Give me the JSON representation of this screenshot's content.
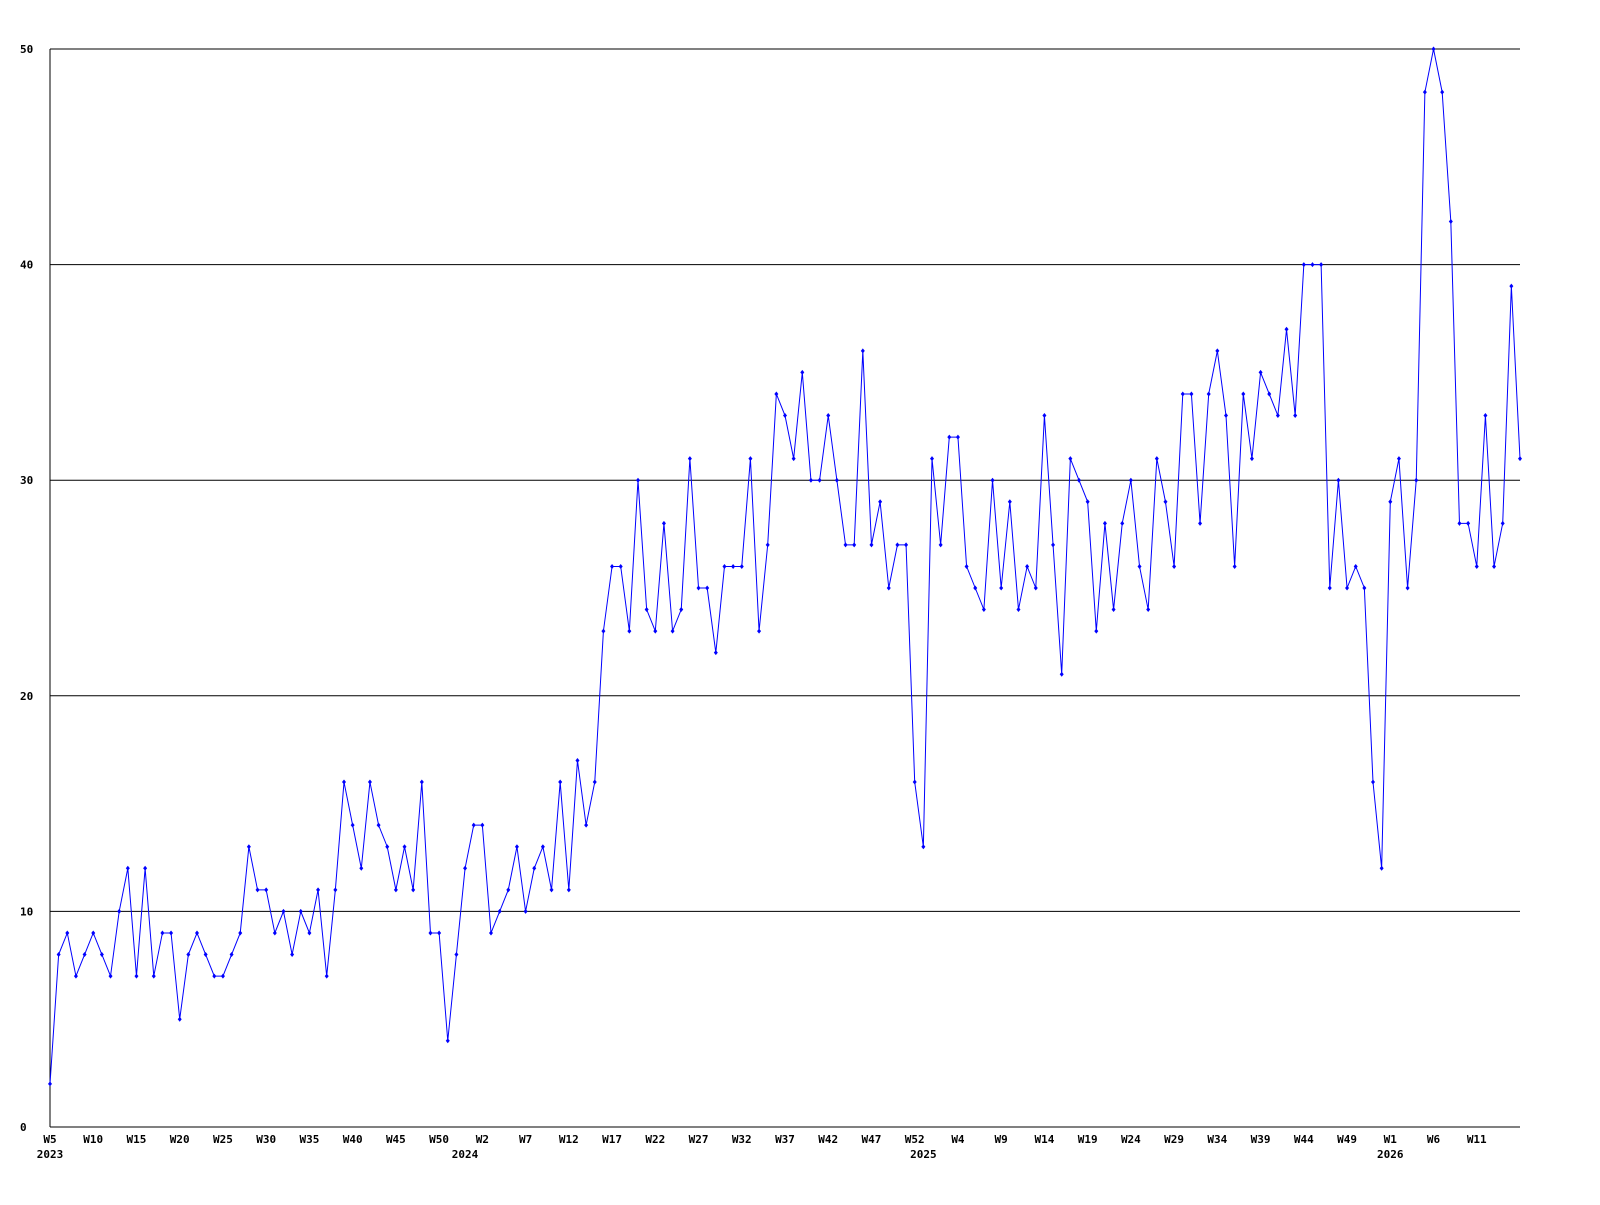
{
  "chart_data": {
    "type": "line",
    "color": "#0000ff",
    "grid": true,
    "ylim": [
      0,
      50
    ],
    "yticks": [
      0,
      10,
      20,
      30,
      40,
      50
    ],
    "categories": [
      "W5",
      null,
      null,
      null,
      null,
      "W10",
      null,
      null,
      null,
      null,
      "W15",
      null,
      null,
      null,
      null,
      "W20",
      null,
      null,
      null,
      null,
      "W25",
      null,
      null,
      null,
      null,
      "W30",
      null,
      null,
      null,
      null,
      "W35",
      null,
      null,
      null,
      null,
      "W40",
      null,
      null,
      null,
      null,
      "W45",
      null,
      null,
      null,
      null,
      "W50",
      null,
      null,
      null,
      null,
      "W2",
      null,
      null,
      null,
      null,
      "W7",
      null,
      null,
      null,
      null,
      "W12",
      null,
      null,
      null,
      null,
      "W17",
      null,
      null,
      null,
      null,
      "W22",
      null,
      null,
      null,
      null,
      "W27",
      null,
      null,
      null,
      null,
      "W32",
      null,
      null,
      null,
      null,
      "W37",
      null,
      null,
      null,
      null,
      "W42",
      null,
      null,
      null,
      null,
      "W47",
      null,
      null,
      null,
      null,
      "W52",
      null,
      null,
      null,
      null,
      "W4",
      null,
      null,
      null,
      null,
      "W9",
      null,
      null,
      null,
      null,
      "W14",
      null,
      null,
      null,
      null,
      "W19",
      null,
      null,
      null,
      null,
      "W24",
      null,
      null,
      null,
      null,
      "W29",
      null,
      null,
      null,
      null,
      "W34",
      null,
      null,
      null,
      null,
      "W39",
      null,
      null,
      null,
      null,
      "W44",
      null,
      null,
      null,
      null,
      "W49",
      null,
      null,
      null,
      null,
      "W1",
      null,
      null,
      null,
      null,
      "W6",
      null,
      null,
      null,
      null,
      "W11",
      null,
      null,
      null,
      null,
      null
    ],
    "year_labels": [
      {
        "index": 0,
        "label": "2023"
      },
      {
        "index": 48,
        "label": "2024"
      },
      {
        "index": 101,
        "label": "2025"
      },
      {
        "index": 155,
        "label": "2026"
      }
    ],
    "values": [
      2,
      8,
      9,
      7,
      8,
      9,
      8,
      7,
      10,
      12,
      7,
      12,
      7,
      9,
      9,
      5,
      8,
      9,
      8,
      7,
      7,
      8,
      9,
      13,
      11,
      11,
      9,
      10,
      8,
      10,
      9,
      11,
      7,
      11,
      16,
      14,
      12,
      16,
      14,
      13,
      11,
      13,
      11,
      16,
      9,
      9,
      4,
      8,
      12,
      14,
      14,
      9,
      10,
      11,
      13,
      10,
      12,
      13,
      11,
      16,
      11,
      17,
      14,
      16,
      23,
      26,
      26,
      23,
      30,
      24,
      23,
      28,
      23,
      24,
      31,
      25,
      25,
      22,
      26,
      26,
      26,
      31,
      23,
      27,
      34,
      33,
      31,
      35,
      30,
      30,
      33,
      30,
      27,
      27,
      36,
      27,
      29,
      25,
      27,
      27,
      16,
      13,
      31,
      27,
      32,
      32,
      26,
      25,
      24,
      30,
      25,
      29,
      24,
      26,
      25,
      33,
      27,
      21,
      31,
      30,
      29,
      23,
      28,
      24,
      28,
      30,
      26,
      24,
      31,
      29,
      26,
      34,
      34,
      28,
      34,
      36,
      33,
      26,
      34,
      31,
      35,
      34,
      33,
      37,
      33,
      40,
      40,
      40,
      25,
      30,
      25,
      26,
      25,
      16,
      12,
      29,
      31,
      25,
      30,
      48,
      50,
      48,
      42,
      28,
      28,
      26,
      33,
      26,
      28,
      39,
      31
    ]
  }
}
